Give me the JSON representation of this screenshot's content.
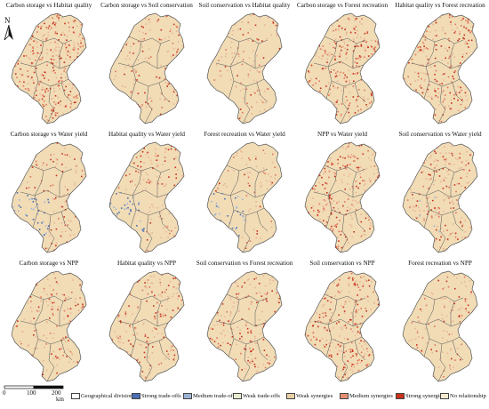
{
  "north_label": "N",
  "scale": {
    "ticks": [
      "0",
      "100",
      "200"
    ],
    "unit": "km"
  },
  "panels": [
    {
      "title": "Carbon storage vs Habitat quality",
      "intensity": 0.9,
      "blue": 0.0
    },
    {
      "title": "Carbon storage vs Soil conservation",
      "intensity": 0.25,
      "blue": 0.0
    },
    {
      "title": "Soil conservation vs Habitat quality",
      "intensity": 0.2,
      "blue": 0.0
    },
    {
      "title": "Carbon storage vs Forest recreation",
      "intensity": 0.65,
      "blue": 0.0
    },
    {
      "title": "Habitat quality vs Forest recreation",
      "intensity": 0.6,
      "blue": 0.0
    },
    {
      "title": "Carbon storage vs Water yield",
      "intensity": 0.3,
      "blue": 0.55
    },
    {
      "title": "Habitat quality vs Water yield",
      "intensity": 0.3,
      "blue": 0.45
    },
    {
      "title": "Forest recreation vs Water yield",
      "intensity": 0.25,
      "blue": 0.4
    },
    {
      "title": "NPP  vs Water yield",
      "intensity": 0.55,
      "blue": 0.0
    },
    {
      "title": "Soil conservation vs Water yield",
      "intensity": 0.5,
      "blue": 0.05
    },
    {
      "title": "Carbon storage vs NPP",
      "intensity": 0.35,
      "blue": 0.0
    },
    {
      "title": "Habitat quality vs NPP",
      "intensity": 0.4,
      "blue": 0.0
    },
    {
      "title": "Soil conservation vs Forest recreation",
      "intensity": 0.35,
      "blue": 0.0
    },
    {
      "title": "Soil conservation vs NPP",
      "intensity": 0.75,
      "blue": 0.0
    },
    {
      "title": "Forest recreation vs NPP",
      "intensity": 0.2,
      "blue": 0.0
    }
  ],
  "legend": [
    {
      "label": "Geographical division",
      "color": "#ffffff"
    },
    {
      "label": "Strong trade-offs",
      "color": "#4a6fb5"
    },
    {
      "label": "Medium trade-offs",
      "color": "#9db3d6"
    },
    {
      "label": "Weak trade-offs",
      "color": "#e9ecd0"
    },
    {
      "label": "Weak synergies",
      "color": "#e9cfa6"
    },
    {
      "label": "Medium synergies",
      "color": "#e38f73"
    },
    {
      "label": "Strong synergies",
      "color": "#c8321e"
    },
    {
      "label": "No relationship",
      "color": "#f5ecd2"
    }
  ],
  "colors": {
    "base": "#f1dcb6",
    "weak": "#e8b596",
    "medium": "#e0755c",
    "strong": "#c8321e",
    "blue_strong": "#4a6fb5",
    "blue_medium": "#9db3d6",
    "outline": "#555555"
  }
}
